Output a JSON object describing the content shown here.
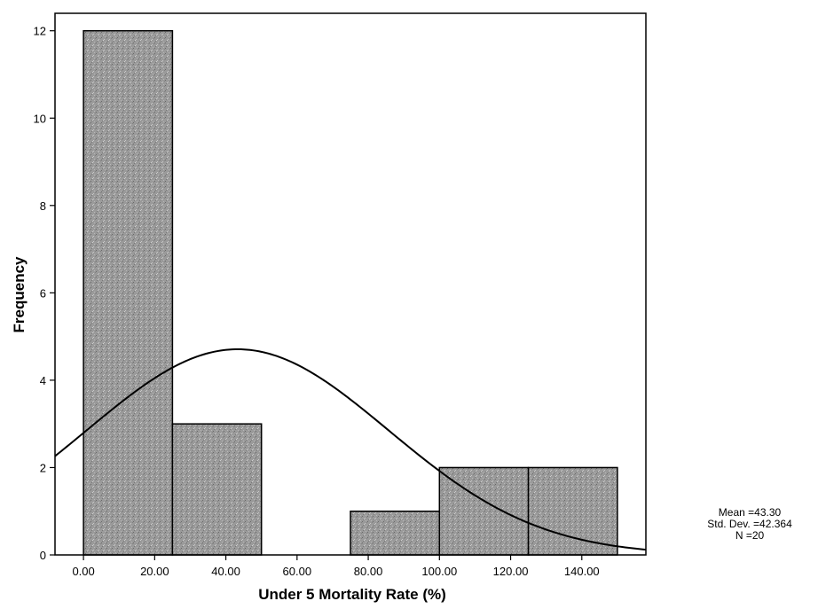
{
  "chart_data": {
    "type": "bar",
    "subtype": "histogram",
    "title": "",
    "xlabel": "Under 5 Mortality Rate (%)",
    "ylabel": "Frequency",
    "bins": [
      {
        "start": 0,
        "end": 25,
        "count": 12
      },
      {
        "start": 25,
        "end": 50,
        "count": 3
      },
      {
        "start": 50,
        "end": 75,
        "count": 0
      },
      {
        "start": 75,
        "end": 100,
        "count": 1
      },
      {
        "start": 100,
        "end": 125,
        "count": 2
      },
      {
        "start": 125,
        "end": 150,
        "count": 2
      }
    ],
    "xlim": [
      -8,
      158
    ],
    "ylim": [
      0,
      12.4
    ],
    "x_ticks": [
      0,
      20,
      40,
      60,
      80,
      100,
      120,
      140
    ],
    "x_tick_labels": [
      "0.00",
      "20.00",
      "40.00",
      "60.00",
      "80.00",
      "100.00",
      "120.00",
      "140.00"
    ],
    "y_ticks": [
      0,
      2,
      4,
      6,
      8,
      10,
      12
    ],
    "y_tick_labels": [
      "0",
      "2",
      "4",
      "6",
      "8",
      "10",
      "12"
    ],
    "normal_curve": {
      "mean": 43.3,
      "std_dev": 42.364,
      "n": 20,
      "bin_width": 25
    },
    "bar_color": "#9a9a9a",
    "grid": false,
    "legend": "none"
  },
  "stats": {
    "mean_label": "Mean =43.30",
    "std_label": "Std. Dev. =42.364",
    "n_label": "N =20"
  }
}
